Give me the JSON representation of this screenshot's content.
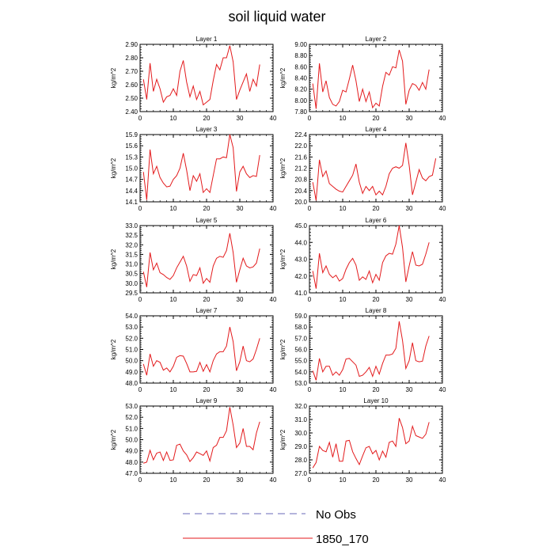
{
  "figure": {
    "title": "soil liquid water",
    "legend": [
      {
        "label": "No Obs",
        "color": "#6a6ab8",
        "style": "dashed"
      },
      {
        "label": "1850_170",
        "color": "#e31a1c",
        "style": "solid"
      }
    ]
  },
  "chart_data": [
    {
      "type": "line",
      "title": "Layer 1",
      "ylabel": "kg/m^2",
      "xlim": [
        0,
        40
      ],
      "xticks": [
        "0",
        "10",
        "20",
        "30",
        "40"
      ],
      "ylim": [
        2.4,
        2.9
      ],
      "yticks": [
        "2.40",
        "2.50",
        "2.60",
        "2.70",
        "2.80",
        "2.90"
      ],
      "color": "#e31a1c",
      "values": [
        2.64,
        2.49,
        2.76,
        2.55,
        2.64,
        2.57,
        2.47,
        2.51,
        2.52,
        2.57,
        2.52,
        2.7,
        2.78,
        2.62,
        2.51,
        2.59,
        2.49,
        2.55,
        2.45,
        2.47,
        2.49,
        2.63,
        2.75,
        2.71,
        2.8,
        2.8,
        2.89,
        2.77,
        2.49,
        2.56,
        2.62,
        2.68,
        2.55,
        2.64,
        2.59,
        2.75
      ]
    },
    {
      "type": "line",
      "title": "Layer 2",
      "ylabel": "kg/m^2",
      "xlim": [
        0,
        40
      ],
      "xticks": [
        "0",
        "10",
        "20",
        "30",
        "40"
      ],
      "ylim": [
        7.8,
        9.0
      ],
      "yticks": [
        "7.80",
        "8.00",
        "8.20",
        "8.40",
        "8.60",
        "8.80",
        "9.00"
      ],
      "color": "#e31a1c",
      "values": [
        8.3,
        7.85,
        8.66,
        8.15,
        8.35,
        8.05,
        7.93,
        7.9,
        7.98,
        8.18,
        8.15,
        8.38,
        8.63,
        8.35,
        7.98,
        8.2,
        7.98,
        8.15,
        7.87,
        7.95,
        7.9,
        8.25,
        8.5,
        8.45,
        8.6,
        8.58,
        8.9,
        8.7,
        7.93,
        8.18,
        8.3,
        8.27,
        8.18,
        8.32,
        8.2,
        8.55
      ]
    },
    {
      "type": "line",
      "title": "Layer 3",
      "ylabel": "kg/m^2",
      "xlim": [
        0,
        40
      ],
      "xticks": [
        "0",
        "10",
        "20",
        "30",
        "40"
      ],
      "ylim": [
        14.1,
        15.9
      ],
      "yticks": [
        "14.1",
        "14.4",
        "14.7",
        "15.0",
        "15.3",
        "15.6",
        "15.9"
      ],
      "color": "#e31a1c",
      "values": [
        14.9,
        14.15,
        15.5,
        14.85,
        15.05,
        14.75,
        14.6,
        14.5,
        14.52,
        14.7,
        14.8,
        15.0,
        15.4,
        14.95,
        14.4,
        14.8,
        14.65,
        14.85,
        14.35,
        14.45,
        14.35,
        14.8,
        15.25,
        15.25,
        15.3,
        15.28,
        15.9,
        15.55,
        14.38,
        14.9,
        15.05,
        14.85,
        14.75,
        14.8,
        14.78,
        15.35
      ]
    },
    {
      "type": "line",
      "title": "Layer 4",
      "ylabel": "kg/m^2",
      "xlim": [
        0,
        40
      ],
      "xticks": [
        "0",
        "10",
        "20",
        "30",
        "40"
      ],
      "ylim": [
        20.0,
        22.4
      ],
      "yticks": [
        "20.0",
        "20.4",
        "20.8",
        "21.2",
        "21.6",
        "22.0",
        "22.4"
      ],
      "color": "#e31a1c",
      "values": [
        20.7,
        20.05,
        21.5,
        20.9,
        21.1,
        20.65,
        20.55,
        20.45,
        20.38,
        20.35,
        20.55,
        20.75,
        20.95,
        21.35,
        20.7,
        20.3,
        20.55,
        20.4,
        20.55,
        20.25,
        20.38,
        20.25,
        20.55,
        21.0,
        21.2,
        21.25,
        21.2,
        21.3,
        22.1,
        21.3,
        20.25,
        20.7,
        21.15,
        20.85,
        20.75,
        20.9,
        20.95,
        21.55
      ]
    },
    {
      "type": "line",
      "title": "Layer 5",
      "ylabel": "kg/m^2",
      "xlim": [
        0,
        40
      ],
      "xticks": [
        "0",
        "10",
        "20",
        "30",
        "40"
      ],
      "ylim": [
        29.5,
        33.0
      ],
      "yticks": [
        "29.5",
        "30.0",
        "30.5",
        "31.0",
        "31.5",
        "32.0",
        "32.5",
        "33.0"
      ],
      "color": "#e31a1c",
      "values": [
        30.6,
        29.8,
        31.6,
        30.7,
        31.05,
        30.55,
        30.45,
        30.3,
        30.2,
        30.4,
        30.8,
        31.1,
        31.4,
        30.9,
        30.1,
        30.45,
        30.4,
        30.8,
        30.0,
        30.25,
        30.05,
        30.9,
        31.3,
        31.4,
        31.35,
        31.7,
        32.6,
        31.6,
        30.05,
        30.7,
        31.3,
        30.9,
        30.8,
        30.85,
        31.05,
        31.8
      ]
    },
    {
      "type": "line",
      "title": "Layer 6",
      "ylabel": "kg/m^2",
      "xlim": [
        0,
        40
      ],
      "xticks": [
        "0",
        "10",
        "20",
        "30",
        "40"
      ],
      "ylim": [
        41.0,
        45.0
      ],
      "yticks": [
        "41.0",
        "42.0",
        "43.0",
        "44.0",
        "45.0"
      ],
      "color": "#e31a1c",
      "values": [
        42.3,
        41.25,
        43.35,
        42.2,
        42.6,
        42.1,
        41.9,
        42.05,
        41.7,
        41.85,
        42.4,
        42.8,
        43.05,
        42.65,
        41.75,
        41.95,
        41.8,
        42.3,
        41.6,
        42.1,
        41.75,
        42.8,
        43.2,
        43.35,
        43.3,
        43.9,
        45.0,
        43.7,
        41.65,
        42.6,
        43.45,
        42.65,
        42.6,
        42.7,
        43.3,
        44.0
      ]
    },
    {
      "type": "line",
      "title": "Layer 7",
      "ylabel": "kg/m^2",
      "xlim": [
        0,
        40
      ],
      "xticks": [
        "0",
        "10",
        "20",
        "30",
        "40"
      ],
      "ylim": [
        48.0,
        54.0
      ],
      "yticks": [
        "48.0",
        "49.0",
        "50.0",
        "51.0",
        "52.0",
        "53.0",
        "54.0"
      ],
      "color": "#e31a1c",
      "values": [
        49.7,
        48.7,
        50.6,
        49.5,
        50.0,
        49.85,
        49.15,
        49.35,
        49.0,
        49.5,
        50.3,
        50.45,
        50.4,
        49.75,
        49.0,
        49.0,
        49.05,
        49.85,
        49.05,
        49.65,
        49.0,
        50.0,
        50.6,
        50.8,
        50.8,
        51.3,
        53.0,
        51.7,
        49.1,
        49.9,
        51.3,
        50.0,
        49.9,
        50.15,
        51.0,
        52.0
      ]
    },
    {
      "type": "line",
      "title": "Layer 8",
      "ylabel": "kg/m^2",
      "xlim": [
        0,
        40
      ],
      "xticks": [
        "0",
        "10",
        "20",
        "30",
        "40"
      ],
      "ylim": [
        53.0,
        59.0
      ],
      "yticks": [
        "53.0",
        "54.0",
        "55.0",
        "56.0",
        "57.0",
        "58.0",
        "59.0"
      ],
      "color": "#e31a1c",
      "values": [
        54.1,
        53.25,
        55.2,
        54.0,
        54.5,
        54.5,
        53.7,
        54.0,
        53.7,
        54.2,
        55.15,
        55.2,
        54.9,
        54.6,
        53.6,
        53.7,
        54.0,
        54.4,
        53.6,
        54.5,
        53.8,
        54.75,
        55.5,
        55.5,
        55.6,
        56.1,
        58.5,
        56.8,
        54.3,
        55.0,
        56.6,
        55.0,
        54.9,
        54.95,
        56.3,
        57.2
      ]
    },
    {
      "type": "line",
      "title": "Layer 9",
      "ylabel": "kg/m^2",
      "xlim": [
        0,
        40
      ],
      "xticks": [
        "0",
        "10",
        "20",
        "30",
        "40"
      ],
      "ylim": [
        47.0,
        53.0
      ],
      "yticks": [
        "47.0",
        "48.0",
        "49.0",
        "50.0",
        "51.0",
        "52.0",
        "53.0"
      ],
      "color": "#e31a1c",
      "values": [
        47.9,
        48.0,
        49.05,
        48.2,
        48.8,
        48.9,
        48.15,
        48.9,
        48.15,
        48.2,
        49.5,
        49.6,
        49.0,
        48.65,
        48.05,
        48.4,
        48.9,
        48.75,
        48.6,
        49.0,
        48.1,
        49.3,
        49.5,
        50.2,
        50.2,
        50.8,
        52.9,
        51.3,
        49.3,
        49.7,
        51.0,
        49.4,
        49.4,
        49.1,
        50.6,
        51.6
      ]
    },
    {
      "type": "line",
      "title": "Layer 10",
      "ylabel": "kg/m^2",
      "xlim": [
        0,
        40
      ],
      "xticks": [
        "0",
        "10",
        "20",
        "30",
        "40"
      ],
      "ylim": [
        27.0,
        32.0
      ],
      "yticks": [
        "27.0",
        "28.0",
        "29.0",
        "30.0",
        "31.0",
        "32.0"
      ],
      "color": "#e31a1c",
      "values": [
        27.4,
        27.8,
        29.0,
        28.7,
        28.6,
        29.3,
        28.2,
        29.2,
        27.9,
        27.9,
        29.4,
        29.45,
        28.6,
        28.1,
        27.65,
        28.3,
        28.9,
        29.0,
        28.45,
        28.7,
        28.0,
        28.65,
        28.2,
        29.3,
        29.4,
        29.0,
        31.1,
        30.4,
        29.2,
        29.4,
        30.5,
        29.8,
        29.7,
        29.6,
        29.9,
        30.8
      ]
    }
  ]
}
